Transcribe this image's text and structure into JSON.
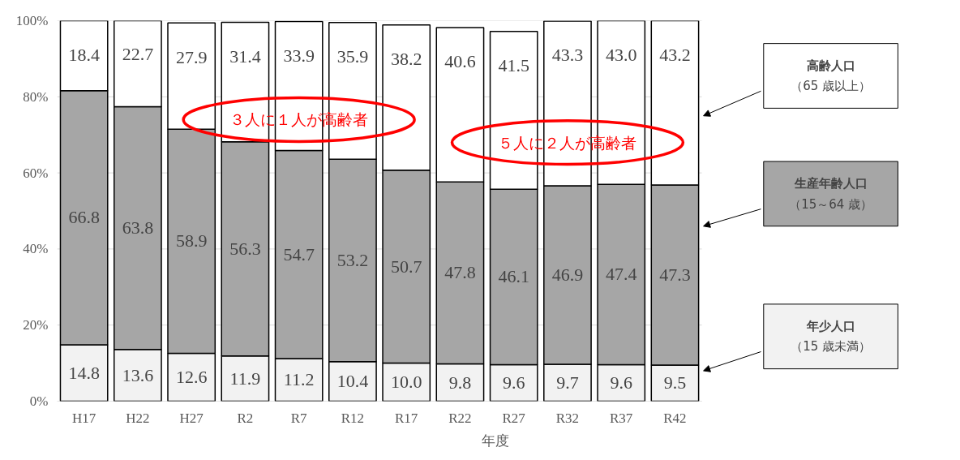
{
  "chart_data": {
    "type": "bar",
    "stacked": true,
    "xlabel": "年度",
    "categories": [
      "H17",
      "H22",
      "H27",
      "R2",
      "R7",
      "R12",
      "R17",
      "R22",
      "R27",
      "R32",
      "R37",
      "R42"
    ],
    "series": [
      {
        "name": "年少人口（15 歳未満）",
        "color": "#f2f2f2",
        "values": [
          14.8,
          13.6,
          12.6,
          11.9,
          11.2,
          10.4,
          10.0,
          9.8,
          9.6,
          9.7,
          9.6,
          9.5
        ],
        "value_labels": [
          "14.8",
          "13.6",
          "12.6",
          "11.9",
          "11.2",
          "10.4",
          "10.0",
          "9.8",
          "9.6",
          "9.7",
          "9.6",
          "9.5"
        ]
      },
      {
        "name": "生産年齢人口（15～64 歳）",
        "color": "#a6a6a6",
        "values": [
          66.8,
          63.8,
          58.9,
          56.3,
          54.7,
          53.2,
          50.7,
          47.8,
          46.1,
          46.9,
          47.4,
          47.3
        ],
        "value_labels": [
          "66.8",
          "63.8",
          "58.9",
          "56.3",
          "54.7",
          "53.2",
          "50.7",
          "47.8",
          "46.1",
          "46.9",
          "47.4",
          "47.3"
        ]
      },
      {
        "name": "高齢人口（65 歳以上）",
        "color": "#ffffff",
        "values": [
          18.4,
          22.7,
          27.9,
          31.4,
          33.9,
          35.9,
          38.2,
          40.6,
          41.5,
          43.3,
          43.0,
          43.2
        ],
        "value_labels": [
          "18.4",
          "22.7",
          "27.9",
          "31.4",
          "33.9",
          "35.9",
          "38.2",
          "40.6",
          "41.5",
          "43.3",
          "43.0",
          "43.2"
        ]
      }
    ],
    "ylim": [
      0,
      100
    ],
    "yticks": [
      {
        "value": 0,
        "label": "0%"
      },
      {
        "value": 20,
        "label": "20%"
      },
      {
        "value": 40,
        "label": "40%"
      },
      {
        "value": 60,
        "label": "60%"
      },
      {
        "value": 80,
        "label": "80%"
      },
      {
        "value": 100,
        "label": "100%"
      }
    ],
    "grid": "y",
    "legend": "right",
    "annotations": [
      "３人に１人が高齢者",
      "５人に２人が高齢者"
    ]
  }
}
